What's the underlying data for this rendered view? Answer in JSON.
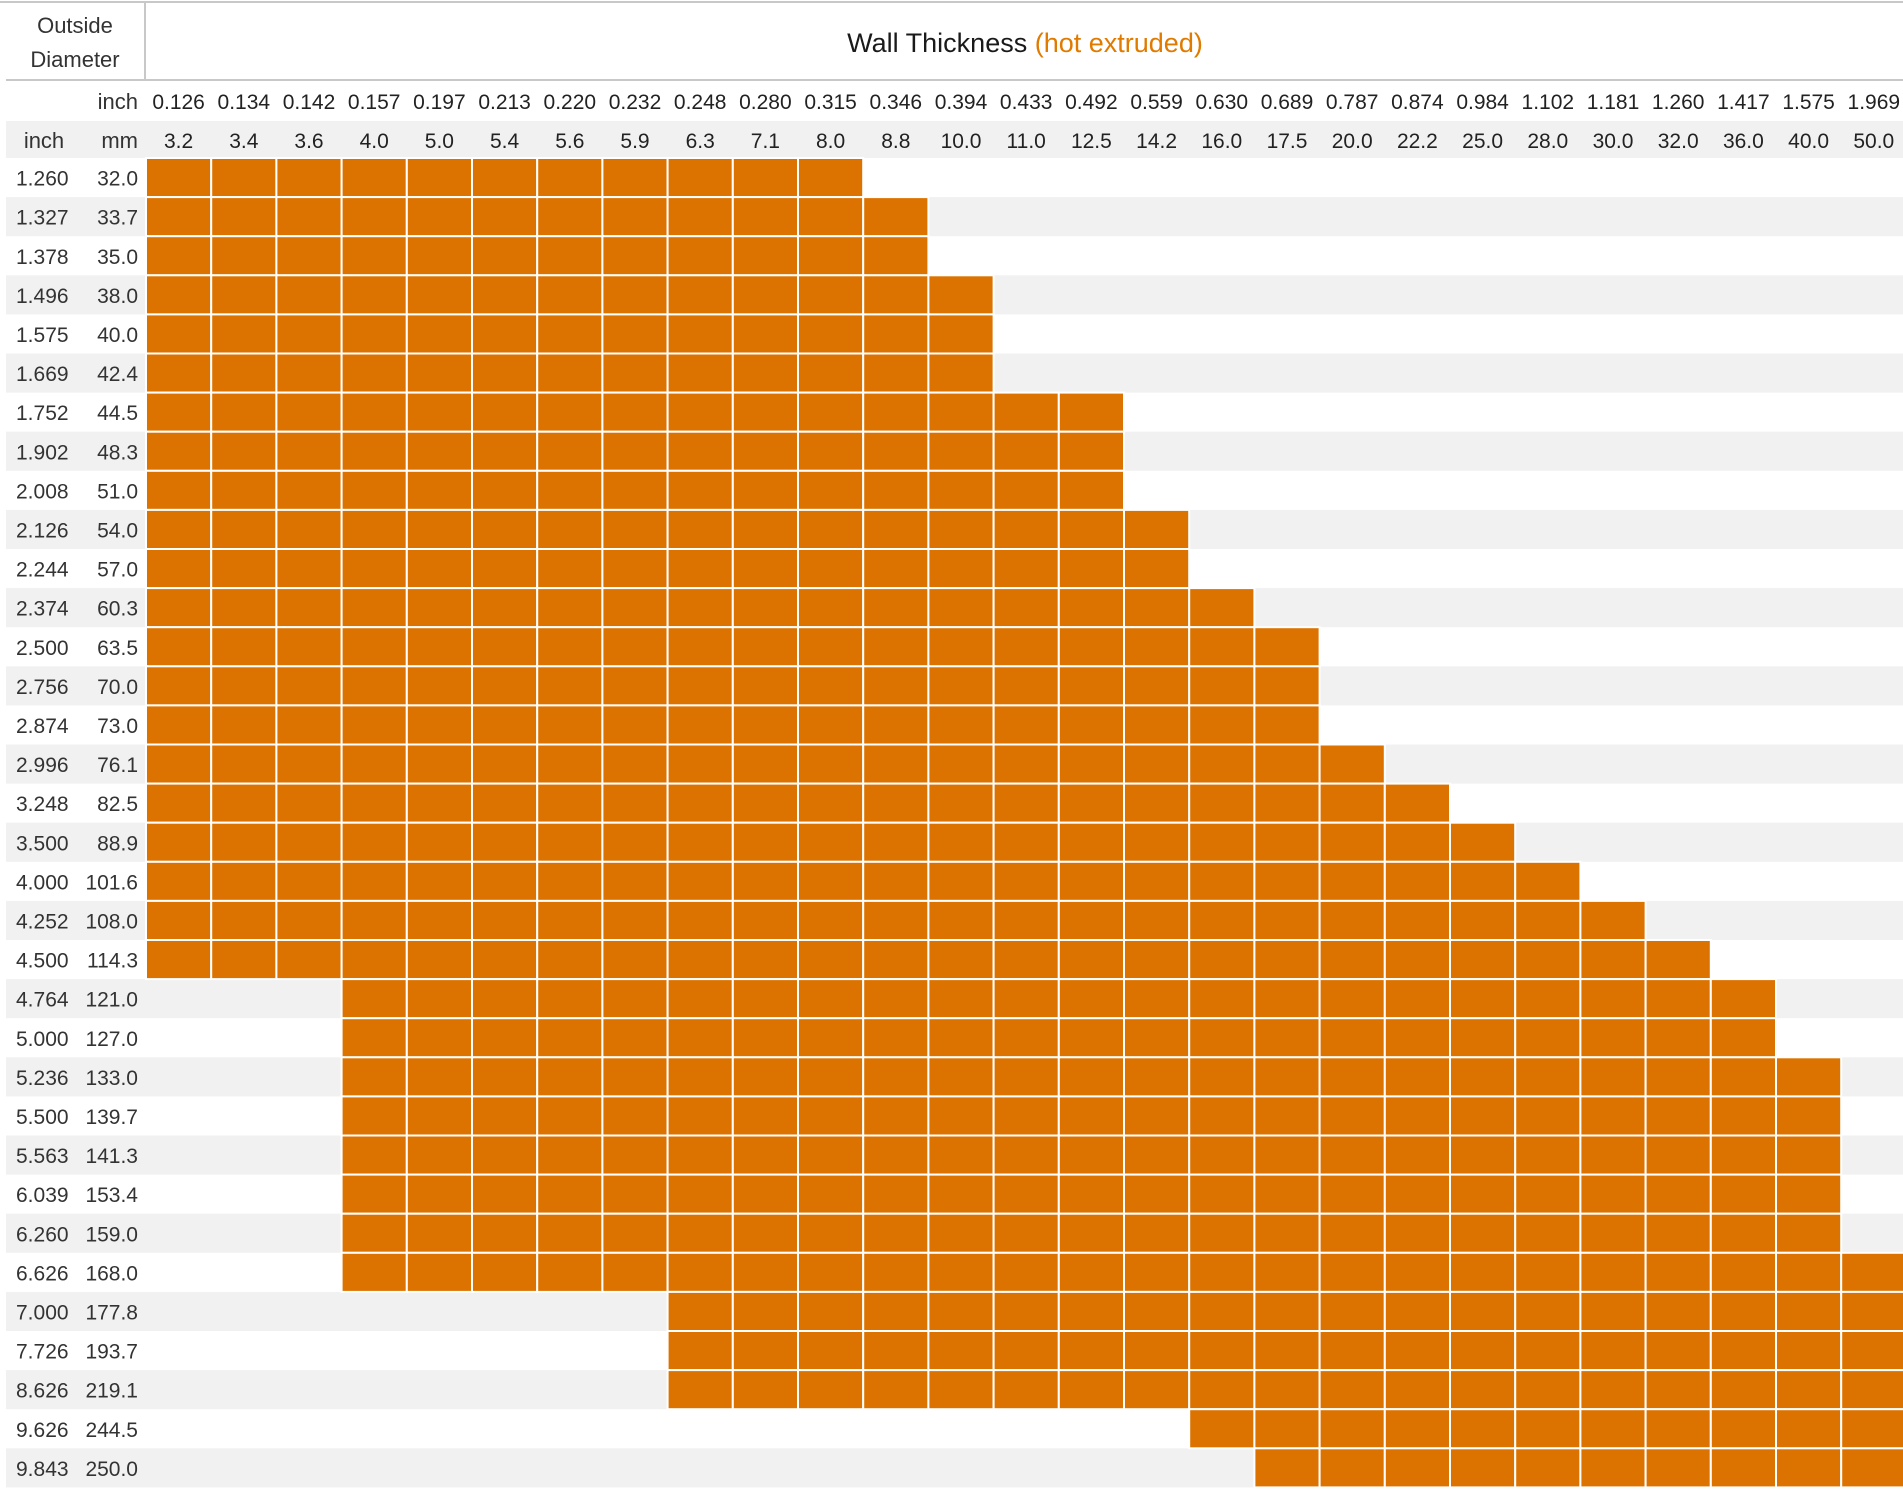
{
  "chart_data": {
    "type": "heatmap",
    "title": "Wall Thickness",
    "title_note": "(hot extruded)",
    "row_header": "Outside Diameter",
    "row_header_line1": "Outside",
    "row_header_line2": "Diameter",
    "col_unit_inch": "inch",
    "row_unit_inch": "inch",
    "row_unit_mm": "mm",
    "wall_inch": [
      "0.126",
      "0.134",
      "0.142",
      "0.157",
      "0.197",
      "0.213",
      "0.220",
      "0.232",
      "0.248",
      "0.280",
      "0.315",
      "0.346",
      "0.394",
      "0.433",
      "0.492",
      "0.559",
      "0.630",
      "0.689",
      "0.787",
      "0.874",
      "0.984",
      "1.102",
      "1.181",
      "1.260",
      "1.417",
      "1.575",
      "1.969"
    ],
    "wall_mm": [
      "3.2",
      "3.4",
      "3.6",
      "4.0",
      "5.0",
      "5.4",
      "5.6",
      "5.9",
      "6.3",
      "7.1",
      "8.0",
      "8.8",
      "10.0",
      "11.0",
      "12.5",
      "14.2",
      "16.0",
      "17.5",
      "20.0",
      "22.2",
      "25.0",
      "28.0",
      "30.0",
      "32.0",
      "36.0",
      "40.0",
      "50.0"
    ],
    "od_inch": [
      "1.260",
      "1.327",
      "1.378",
      "1.496",
      "1.575",
      "1.669",
      "1.752",
      "1.902",
      "2.008",
      "2.126",
      "2.244",
      "2.374",
      "2.500",
      "2.756",
      "2.874",
      "2.996",
      "3.248",
      "3.500",
      "4.000",
      "4.252",
      "4.500",
      "4.764",
      "5.000",
      "5.236",
      "5.500",
      "5.563",
      "6.039",
      "6.260",
      "6.626",
      "7.000",
      "7.726",
      "8.626",
      "9.626",
      "9.843"
    ],
    "od_mm": [
      "32.0",
      "33.7",
      "35.0",
      "38.0",
      "40.0",
      "42.4",
      "44.5",
      "48.3",
      "51.0",
      "54.0",
      "57.0",
      "60.3",
      "63.5",
      "70.0",
      "73.0",
      "76.1",
      "82.5",
      "88.9",
      "101.6",
      "108.0",
      "114.3",
      "121.0",
      "127.0",
      "133.0",
      "139.7",
      "141.3",
      "153.4",
      "159.0",
      "168.0",
      "177.8",
      "193.7",
      "219.1",
      "244.5",
      "250.0"
    ],
    "available_wall_mm_range_by_row": [
      [
        "3.2",
        "8.0"
      ],
      [
        "3.2",
        "8.8"
      ],
      [
        "3.2",
        "8.8"
      ],
      [
        "3.2",
        "10.0"
      ],
      [
        "3.2",
        "10.0"
      ],
      [
        "3.2",
        "10.0"
      ],
      [
        "3.2",
        "12.5"
      ],
      [
        "3.2",
        "12.5"
      ],
      [
        "3.2",
        "12.5"
      ],
      [
        "3.2",
        "14.2"
      ],
      [
        "3.2",
        "14.2"
      ],
      [
        "3.2",
        "16.0"
      ],
      [
        "3.2",
        "17.5"
      ],
      [
        "3.2",
        "17.5"
      ],
      [
        "3.2",
        "17.5"
      ],
      [
        "3.2",
        "20.0"
      ],
      [
        "3.2",
        "22.2"
      ],
      [
        "3.2",
        "25.0"
      ],
      [
        "3.2",
        "28.0"
      ],
      [
        "3.2",
        "30.0"
      ],
      [
        "3.2",
        "32.0"
      ],
      [
        "4.0",
        "36.0"
      ],
      [
        "4.0",
        "36.0"
      ],
      [
        "4.0",
        "40.0"
      ],
      [
        "4.0",
        "40.0"
      ],
      [
        "4.0",
        "40.0"
      ],
      [
        "4.0",
        "40.0"
      ],
      [
        "4.0",
        "40.0"
      ],
      [
        "4.0",
        "50.0"
      ],
      [
        "6.3",
        "50.0"
      ],
      [
        "6.3",
        "50.0"
      ],
      [
        "6.3",
        "50.0"
      ],
      [
        "16.0",
        "50.0"
      ],
      [
        "17.5",
        "50.0"
      ]
    ],
    "fill_color": "#dc7300",
    "stripe_color": "#f1f1f1",
    "accent_color": "#e07b00"
  }
}
